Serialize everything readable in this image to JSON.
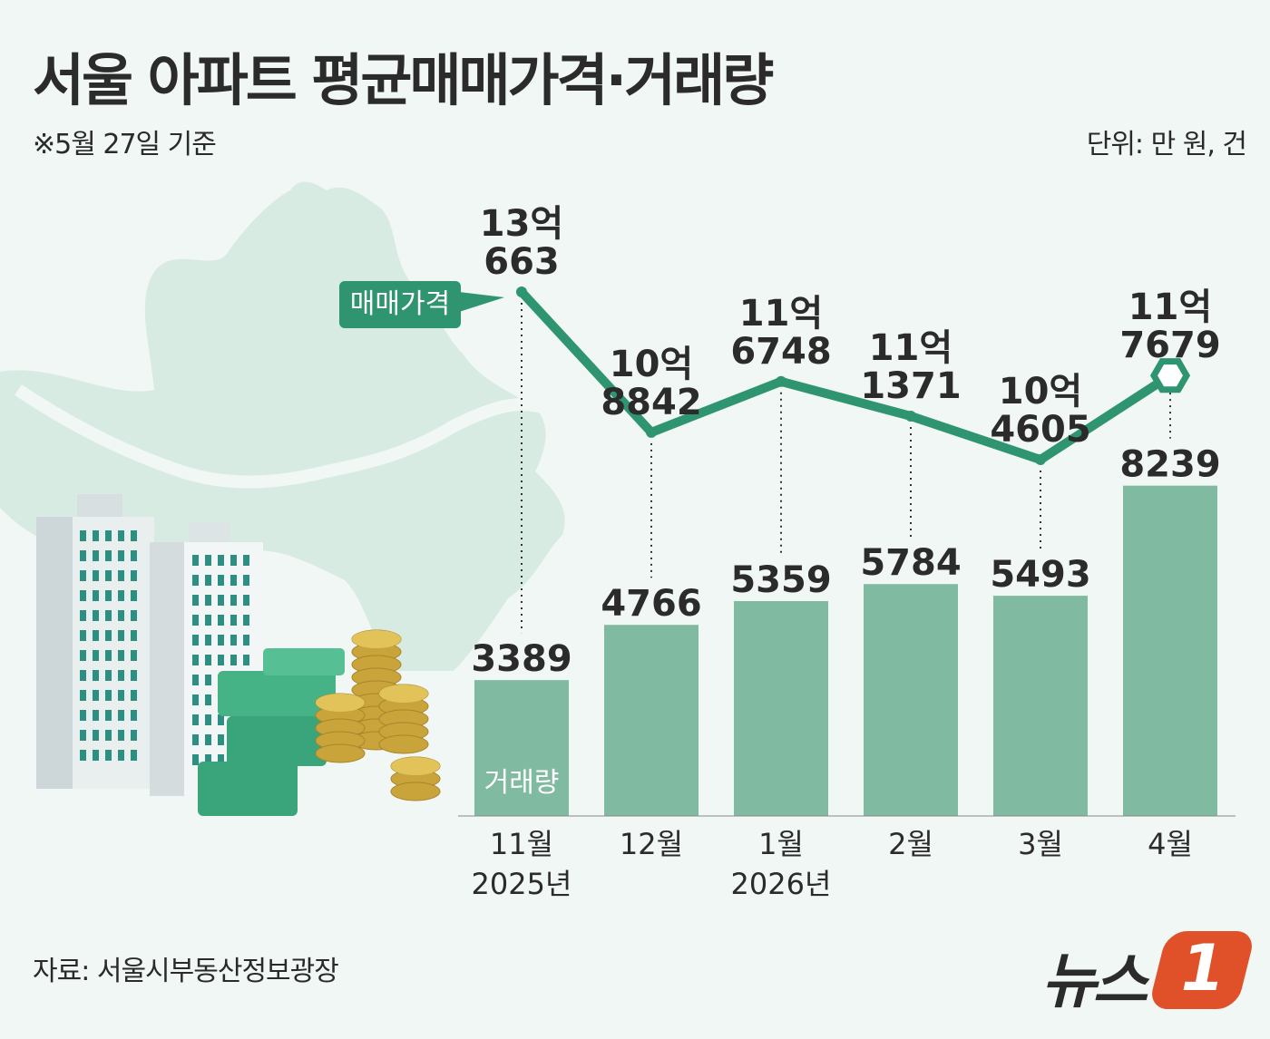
{
  "title": "서울 아파트 평균매매가격·거래량",
  "note": "※5월 27일 기준",
  "unit": "단위: 만 원, 건",
  "source": "자료: 서울시부동산정보광장",
  "logo": {
    "text": "뉴스",
    "number": "1"
  },
  "colors": {
    "bar": "#80bba1",
    "line": "#2f9470",
    "map": "#d8ebe2",
    "background": "#f1f7f4",
    "logo": "#e0512a"
  },
  "chart_data": {
    "type": "bar",
    "categories": [
      "11월",
      "12월",
      "1월",
      "2월",
      "3월",
      "4월"
    ],
    "year_labels": [
      "2025년",
      "",
      "2026년",
      "",
      "",
      ""
    ],
    "series": [
      {
        "name": "거래량",
        "type": "bar",
        "values": [
          3389,
          4766,
          5359,
          5784,
          5493,
          8239
        ]
      },
      {
        "name": "매매가격",
        "type": "line",
        "values": [
          130663,
          108842,
          116748,
          111371,
          104605,
          117679
        ],
        "labels_top": [
          "13억",
          "10억",
          "11억",
          "11억",
          "10억",
          "11억"
        ],
        "labels_bottom": [
          "663",
          "8842",
          "6748",
          "1371",
          "4605",
          "7679"
        ]
      }
    ],
    "bar_ylim": [
      0,
      9000
    ],
    "line_ylim": [
      95000,
      140000
    ],
    "grid": false
  }
}
